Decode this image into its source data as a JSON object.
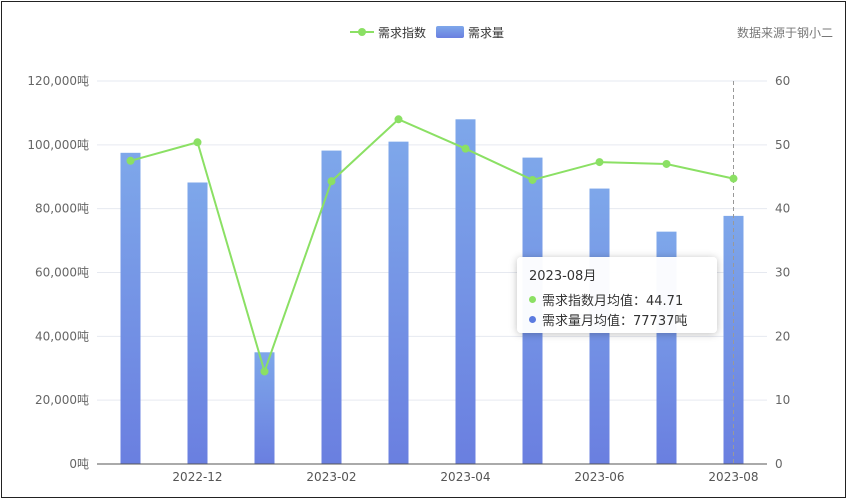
{
  "legend": {
    "line_label": "需求指数",
    "bar_label": "需求量"
  },
  "source_note": "数据来源于钢小二",
  "tooltip": {
    "title": "2023-08月",
    "line_row": "需求指数月均值：44.71",
    "bar_row": "需求量月均值：77737吨"
  },
  "colors": {
    "line": "#8be064",
    "bar_top": "#7ea7ea",
    "bar_bottom": "#6a7fe0",
    "tooltip_bar_dot": "#5b7be0"
  },
  "chart_data": {
    "type": "bar",
    "categories": [
      "2022-11",
      "2022-12",
      "2023-01",
      "2023-02",
      "2023-03",
      "2023-04",
      "2023-05",
      "2023-06",
      "2023-07",
      "2023-08"
    ],
    "x_tick_labels": [
      "2022-12",
      "2023-02",
      "2023-04",
      "2023-06",
      "2023-08"
    ],
    "series": [
      {
        "name": "需求量",
        "type": "bar",
        "axis": "left",
        "values": [
          97500,
          88200,
          35000,
          98200,
          101000,
          108000,
          96000,
          86300,
          72800,
          77737
        ]
      },
      {
        "name": "需求指数",
        "type": "line",
        "axis": "right",
        "values": [
          47.5,
          50.4,
          14.5,
          44.3,
          54.0,
          49.4,
          44.5,
          47.3,
          47.0,
          44.71
        ]
      }
    ],
    "y_left": {
      "min": 0,
      "max": 120000,
      "ticks": [
        "0吨",
        "20,000吨",
        "40,000吨",
        "60,000吨",
        "80,000吨",
        "100,000吨",
        "120,000吨"
      ]
    },
    "y_right": {
      "min": 0,
      "max": 60,
      "ticks": [
        "0",
        "10",
        "20",
        "30",
        "40",
        "50",
        "60"
      ]
    },
    "highlight_category": "2023-08",
    "grid": true,
    "legend_position": "top-center"
  }
}
